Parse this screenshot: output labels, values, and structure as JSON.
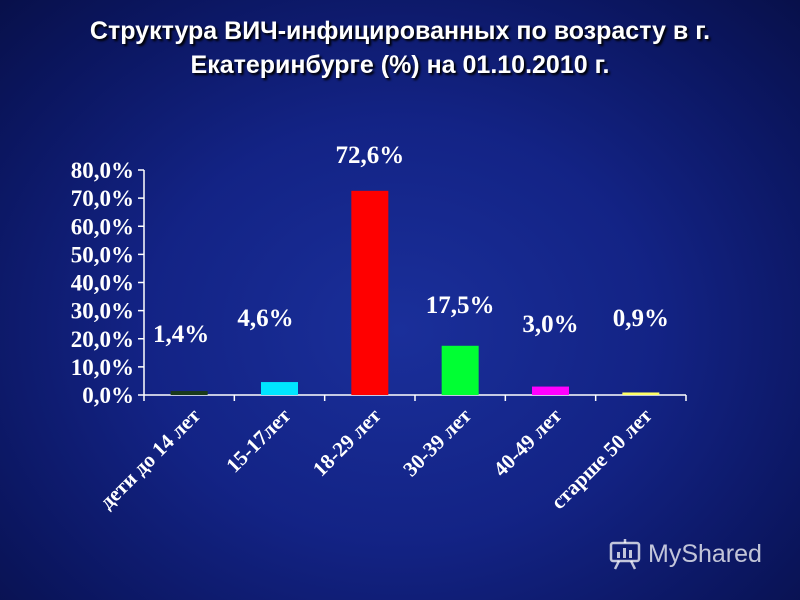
{
  "title": {
    "line1": "Структура ВИЧ-инфицированных  по возрасту в г.",
    "line2": "Екатеринбурге (%) на 01.10.2010 г."
  },
  "watermark": {
    "text": "MyShared"
  },
  "chart_data": {
    "type": "bar",
    "categories": [
      "дети до 14 лет",
      "15-17лет",
      "18-29 лет",
      "30-39 лет",
      "40-49 лет",
      "старше 50 лет"
    ],
    "values": [
      1.4,
      4.6,
      72.6,
      17.5,
      3.0,
      0.9
    ],
    "data_labels": [
      "1,4%",
      "4,6%",
      "72,6%",
      "17,5%",
      "3,0%",
      "0,9%"
    ],
    "colors": [
      "#1a3a1a",
      "#00e5ff",
      "#ff0000",
      "#00ff33",
      "#ff00ff",
      "#ffff66"
    ],
    "yticks": [
      "0,0%",
      "10,0%",
      "20,0%",
      "30,0%",
      "40,0%",
      "50,0%",
      "60,0%",
      "70,0%",
      "80,0%"
    ],
    "ylim": [
      0,
      80
    ],
    "grid": false,
    "legend": "none"
  }
}
